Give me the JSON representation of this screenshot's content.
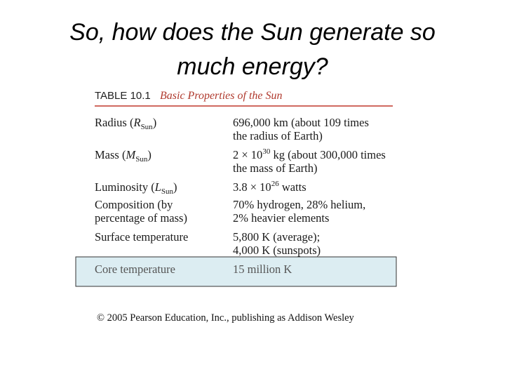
{
  "header": {
    "title": [
      "So, how does the Sun generate so",
      "much energy?"
    ]
  },
  "table": {
    "number": "TABLE 10.1",
    "caption": "Basic Properties of the Sun",
    "rows": [
      {
        "label": [
          [
            {
              "t": "Radius ("
            },
            {
              "t": "R",
              "f": "i"
            },
            {
              "t": "Sun",
              "f": "sub"
            },
            {
              "t": ")"
            }
          ]
        ],
        "value": [
          [
            {
              "t": "696,000 km (about 109 times"
            }
          ],
          [
            {
              "t": "the radius of Earth)"
            }
          ]
        ]
      },
      {
        "label": [
          [
            {
              "t": "Mass ("
            },
            {
              "t": "M",
              "f": "i"
            },
            {
              "t": "Sun",
              "f": "sub"
            },
            {
              "t": ")"
            }
          ]
        ],
        "value": [
          [
            {
              "t": "2 × 10"
            },
            {
              "t": "30",
              "f": "sup"
            },
            {
              "t": " kg (about 300,000 times"
            }
          ],
          [
            {
              "t": "the mass of Earth)"
            }
          ]
        ]
      },
      {
        "label": [
          [
            {
              "t": "Luminosity ("
            },
            {
              "t": "L",
              "f": "i"
            },
            {
              "t": "Sun",
              "f": "sub"
            },
            {
              "t": ")"
            }
          ]
        ],
        "value": [
          [
            {
              "t": "3.8 × 10"
            },
            {
              "t": "26",
              "f": "sup"
            },
            {
              "t": " watts"
            }
          ]
        ]
      },
      {
        "label": [
          [
            {
              "t": "Composition (by"
            }
          ],
          [
            {
              "t": "percentage of mass)"
            }
          ]
        ],
        "value": [
          [
            {
              "t": "70% hydrogen, 28% helium,"
            }
          ],
          [
            {
              "t": "2% heavier elements"
            }
          ]
        ]
      },
      {
        "label": [
          [
            {
              "t": "Surface temperature"
            }
          ]
        ],
        "value": [
          [
            {
              "t": "5,800 K (average);"
            }
          ],
          [
            {
              "t": "4,000 K (sunspots)"
            }
          ]
        ]
      },
      {
        "label": [
          [
            {
              "t": "Core temperature"
            }
          ]
        ],
        "value": [
          [
            {
              "t": "15 million K"
            }
          ]
        ],
        "highlight": true
      }
    ],
    "footer": "© 2005 Pearson Education, Inc., publishing as Addison Wesley"
  }
}
